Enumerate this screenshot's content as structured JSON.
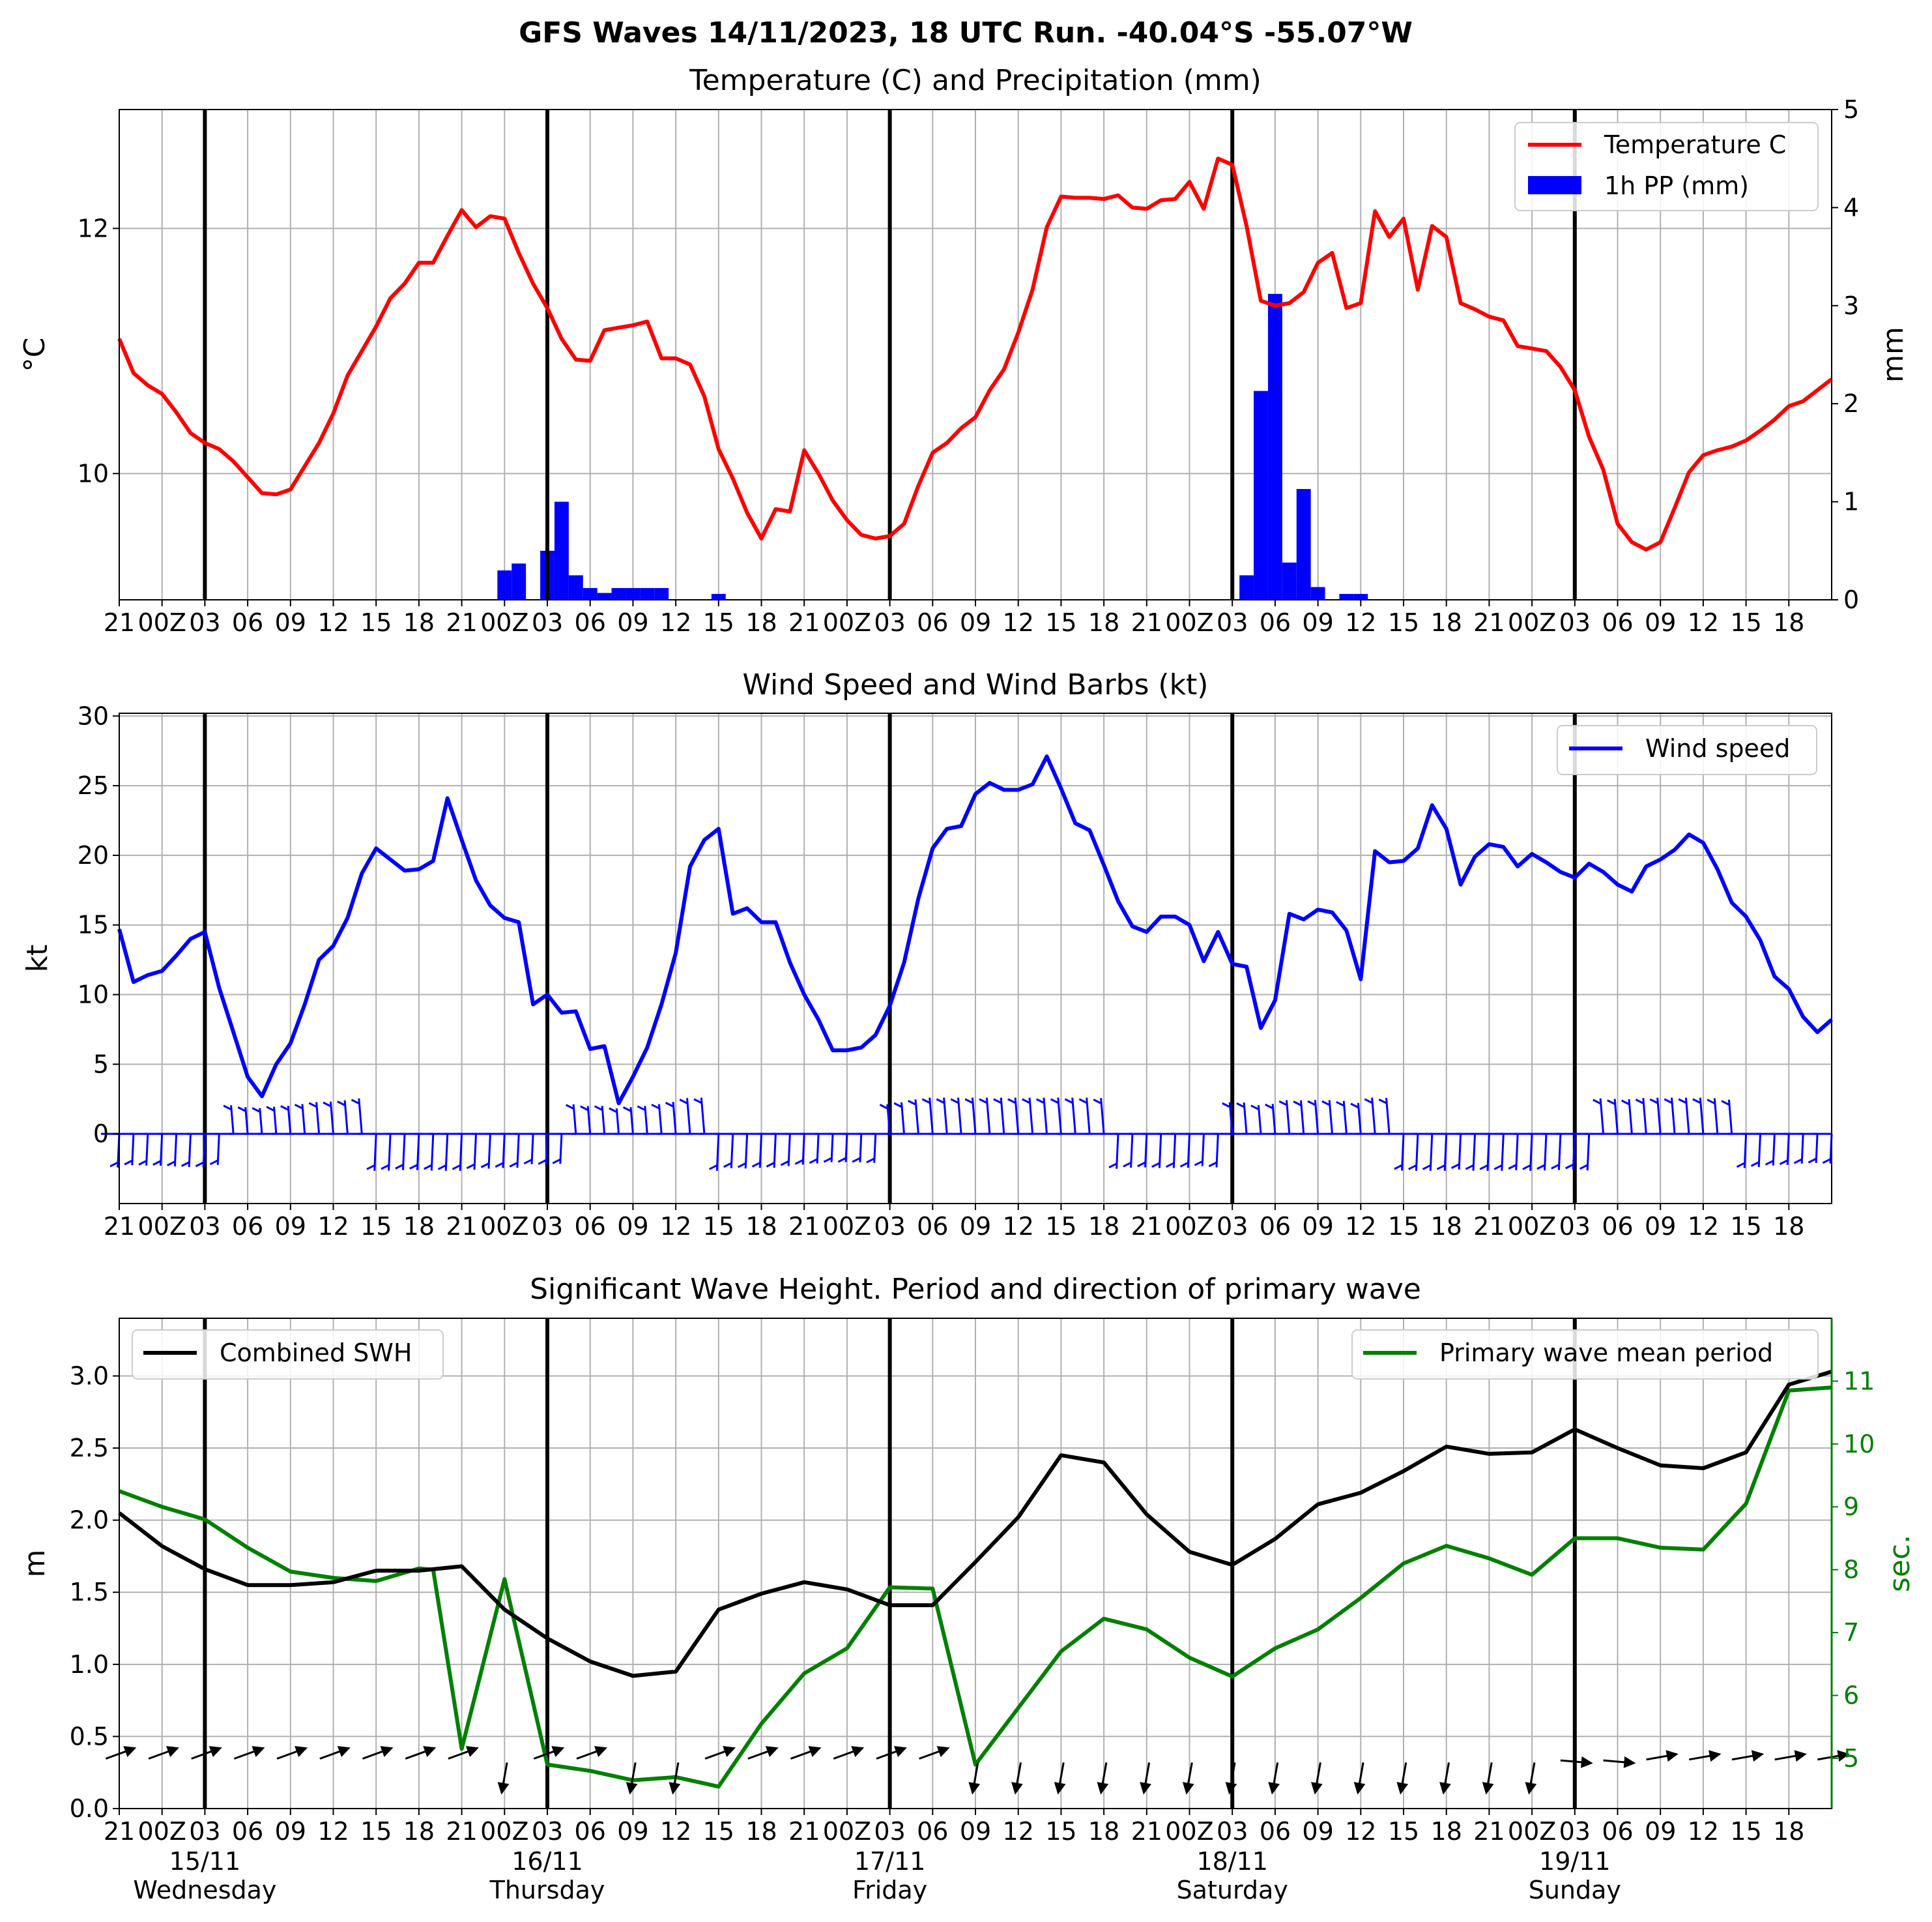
{
  "title": "GFS Waves 14/11/2023, 18 UTC Run. -40.04°S -55.07°W",
  "x_tick_labels": [
    "21",
    "00Z",
    "03",
    "06",
    "09",
    "12",
    "15",
    "18",
    "21",
    "00Z",
    "03",
    "06",
    "09",
    "12",
    "15",
    "18",
    "21",
    "00Z",
    "03",
    "06",
    "09",
    "12",
    "15",
    "18",
    "21",
    "00Z",
    "03",
    "06",
    "09",
    "12",
    "15",
    "18",
    "21",
    "00Z",
    "03",
    "06",
    "09",
    "12",
    "15",
    "18"
  ],
  "day_labels": [
    {
      "date": "15/11",
      "weekday": "Wednesday"
    },
    {
      "date": "16/11",
      "weekday": "Thursday"
    },
    {
      "date": "17/11",
      "weekday": "Friday"
    },
    {
      "date": "18/11",
      "weekday": "Saturday"
    },
    {
      "date": "19/11",
      "weekday": "Sunday"
    }
  ],
  "colors": {
    "temperature": "#ff0000",
    "precipitation": "#0000ff",
    "wind": "#0000ff",
    "swh": "#000000",
    "period": "#008000",
    "grid": "#b0b0b0"
  },
  "chart_data": [
    {
      "type": "line",
      "title": "Temperature (C) and Precipitation (mm)",
      "x_unit": "hours since 14/11/2023 18 UTC",
      "xlim": [
        0,
        120
      ],
      "ylabel": "°C",
      "ylim": [
        8.97,
        12.97
      ],
      "yticks": [
        10,
        12
      ],
      "ylabel_right": "mm",
      "ylim_right": [
        0,
        5
      ],
      "yticks_right": [
        0,
        1,
        2,
        3,
        4,
        5
      ],
      "legend": {
        "location": "upper right",
        "entries": [
          "Temperature C",
          "1h PP (mm)"
        ]
      },
      "series": [
        {
          "name": "Temperature C",
          "x": [
            0,
            1,
            2,
            3,
            4,
            5,
            6,
            7,
            8,
            9,
            10,
            11,
            12,
            13,
            14,
            15,
            16,
            17,
            18,
            19,
            20,
            21,
            22,
            23,
            24,
            25,
            26,
            27,
            28,
            29,
            30,
            31,
            32,
            33,
            34,
            35,
            36,
            37,
            38,
            39,
            40,
            41,
            42,
            43,
            44,
            45,
            46,
            47,
            48,
            49,
            50,
            51,
            52,
            53,
            54,
            55,
            56,
            57,
            58,
            59,
            60,
            61,
            62,
            63,
            64,
            65,
            66,
            67,
            68,
            69,
            70,
            71,
            72,
            73,
            74,
            75,
            76,
            77,
            78,
            79,
            80,
            81,
            82,
            83,
            84,
            85,
            86,
            87,
            88,
            89,
            90,
            91,
            92,
            93,
            94,
            95,
            96,
            97,
            98,
            99,
            100,
            101,
            102,
            103,
            104,
            105,
            106,
            107,
            108,
            109,
            110,
            111,
            112,
            113,
            114,
            115,
            116,
            117,
            118,
            119,
            120
          ],
          "values": [
            11.1,
            10.82,
            10.72,
            10.65,
            10.5,
            10.33,
            10.25,
            10.2,
            10.1,
            9.97,
            9.84,
            9.83,
            9.87,
            10.06,
            10.25,
            10.49,
            10.8,
            11.0,
            11.2,
            11.43,
            11.55,
            11.72,
            11.72,
            11.94,
            12.15,
            12.01,
            12.1,
            12.08,
            11.8,
            11.55,
            11.35,
            11.1,
            10.93,
            10.92,
            11.17,
            11.19,
            11.21,
            11.24,
            10.94,
            10.94,
            10.89,
            10.63,
            10.2,
            9.96,
            9.68,
            9.47,
            9.71,
            9.69,
            10.19,
            10.0,
            9.78,
            9.62,
            9.5,
            9.47,
            9.49,
            9.59,
            9.9,
            10.17,
            10.25,
            10.37,
            10.46,
            10.68,
            10.85,
            11.15,
            11.5,
            12.01,
            12.26,
            12.25,
            12.25,
            12.24,
            12.27,
            12.17,
            12.16,
            12.23,
            12.24,
            12.38,
            12.16,
            12.57,
            12.52,
            12.02,
            11.41,
            11.37,
            11.39,
            11.48,
            11.72,
            11.8,
            11.35,
            11.39,
            12.14,
            11.93,
            12.08,
            11.5,
            12.02,
            11.93,
            11.39,
            11.34,
            11.28,
            11.25,
            11.04,
            11.02,
            11.0,
            10.87,
            10.68,
            10.3,
            10.03,
            9.59,
            9.44,
            9.38,
            9.44,
            9.72,
            10.01,
            10.15,
            10.19,
            10.22,
            10.27,
            10.35,
            10.44,
            10.55,
            10.59,
            10.68,
            10.77
          ]
        },
        {
          "name": "1h PP (mm)",
          "axis": "right",
          "x": [
            27,
            28,
            30,
            31,
            32,
            33,
            34,
            35,
            36,
            37,
            38,
            42,
            79,
            80,
            81,
            82,
            83,
            84,
            85,
            86,
            87
          ],
          "values": [
            0.3,
            0.37,
            0.5,
            1.0,
            0.25,
            0.12,
            0.07,
            0.12,
            0.12,
            0.12,
            0.12,
            0.06,
            0.25,
            2.13,
            3.12,
            0.38,
            1.13,
            0.13,
            0.0,
            0.06,
            0.06
          ]
        }
      ]
    },
    {
      "type": "line",
      "title": "Wind Speed and Wind Barbs (kt)",
      "xlim": [
        0,
        120
      ],
      "ylabel": "kt",
      "ylim": [
        -5,
        30.2
      ],
      "yticks": [
        0,
        5,
        10,
        15,
        20,
        25,
        30
      ],
      "legend": {
        "location": "upper right",
        "entries": [
          "Wind speed"
        ]
      },
      "series": [
        {
          "name": "Wind speed",
          "x": [
            0,
            1,
            2,
            3,
            4,
            5,
            6,
            7,
            8,
            9,
            10,
            11,
            12,
            13,
            14,
            15,
            16,
            17,
            18,
            19,
            20,
            21,
            22,
            23,
            24,
            25,
            26,
            27,
            28,
            29,
            30,
            31,
            32,
            33,
            34,
            35,
            36,
            37,
            38,
            39,
            40,
            41,
            42,
            43,
            44,
            45,
            46,
            47,
            48,
            49,
            50,
            51,
            52,
            53,
            54,
            55,
            56,
            57,
            58,
            59,
            60,
            61,
            62,
            63,
            64,
            65,
            66,
            67,
            68,
            69,
            70,
            71,
            72,
            73,
            74,
            75,
            76,
            77,
            78,
            79,
            80,
            81,
            82,
            83,
            84,
            85,
            86,
            87,
            88,
            89,
            90,
            91,
            92,
            93,
            94,
            95,
            96,
            97,
            98,
            99,
            100,
            101,
            102,
            103,
            104,
            105,
            106,
            107,
            108,
            109,
            110,
            111,
            112,
            113,
            114,
            115,
            116,
            117,
            118,
            119,
            120
          ],
          "values": [
            14.7,
            10.9,
            11.4,
            11.7,
            12.8,
            14.0,
            14.5,
            10.5,
            7.3,
            4.1,
            2.7,
            5.0,
            6.5,
            9.3,
            12.5,
            13.5,
            15.5,
            18.7,
            20.5,
            19.7,
            18.9,
            19.0,
            19.6,
            24.1,
            21.1,
            18.2,
            16.4,
            15.5,
            15.2,
            9.3,
            10.0,
            8.7,
            8.8,
            6.1,
            6.3,
            2.2,
            4.1,
            6.2,
            9.3,
            13.0,
            19.2,
            21.1,
            21.9,
            15.8,
            16.2,
            15.2,
            15.2,
            12.3,
            10.0,
            8.2,
            6.0,
            6.0,
            6.2,
            7.1,
            9.2,
            12.3,
            16.9,
            20.5,
            21.9,
            22.1,
            24.4,
            25.2,
            24.7,
            24.7,
            25.1,
            27.1,
            24.8,
            22.3,
            21.8,
            19.3,
            16.7,
            14.9,
            14.5,
            15.6,
            15.6,
            15.0,
            12.4,
            14.5,
            12.2,
            12.0,
            7.6,
            9.6,
            15.8,
            15.4,
            16.1,
            15.9,
            14.6,
            11.1,
            20.3,
            19.5,
            19.6,
            20.5,
            23.6,
            21.9,
            17.9,
            19.9,
            20.8,
            20.6,
            19.2,
            20.1,
            19.5,
            18.8,
            18.4,
            19.4,
            18.8,
            17.9,
            17.4,
            19.2,
            19.7,
            20.4,
            21.5,
            20.9,
            19.0,
            16.6,
            15.6,
            13.9,
            11.3,
            10.4,
            8.4,
            7.3,
            8.2
          ]
        }
      ]
    },
    {
      "type": "line",
      "title": "Significant Wave Height. Period and direction of primary wave",
      "xlim": [
        0,
        120
      ],
      "ylabel": "m",
      "ylim": [
        0,
        3.4
      ],
      "yticks": [
        0.0,
        0.5,
        1.0,
        1.5,
        2.0,
        2.5,
        3.0
      ],
      "ylabel_right": "sec.",
      "ylim_right": [
        4.2,
        12
      ],
      "yticks_right": [
        5,
        6,
        7,
        8,
        9,
        10,
        11
      ],
      "legend": [
        {
          "location": "upper left",
          "entries": [
            "Combined SWH"
          ]
        },
        {
          "location": "upper right",
          "entries": [
            "Primary wave mean period"
          ]
        }
      ],
      "series": [
        {
          "name": "Combined SWH",
          "x": [
            0,
            3,
            6,
            9,
            12,
            15,
            18,
            21,
            24,
            27,
            30,
            33,
            36,
            39,
            42,
            45,
            48,
            51,
            54,
            57,
            60,
            63,
            66,
            69,
            72,
            75,
            78,
            81,
            84,
            87,
            90,
            93,
            96,
            99,
            102,
            105,
            108,
            111,
            114,
            117,
            120
          ],
          "values": [
            2.05,
            1.82,
            1.66,
            1.55,
            1.55,
            1.57,
            1.65,
            1.65,
            1.68,
            1.38,
            1.18,
            1.02,
            0.92,
            0.95,
            1.38,
            1.49,
            1.57,
            1.52,
            1.41,
            1.41,
            1.71,
            2.02,
            2.45,
            2.4,
            2.04,
            1.78,
            1.69,
            1.87,
            2.11,
            2.19,
            2.34,
            2.51,
            2.46,
            2.47,
            2.63,
            2.5,
            2.38,
            2.36,
            2.47,
            2.94,
            3.03
          ]
        },
        {
          "name": "Primary wave mean period",
          "axis": "right",
          "x": [
            0,
            3,
            6,
            9,
            12,
            15,
            18,
            21,
            22,
            24,
            27,
            30,
            33,
            36,
            39,
            42,
            45,
            48,
            51,
            54,
            57,
            60,
            63,
            66,
            69,
            72,
            75,
            78,
            81,
            84,
            87,
            90,
            93,
            96,
            99,
            102,
            105,
            108,
            111,
            114,
            117,
            120
          ],
          "values": [
            9.25,
            9.0,
            8.8,
            8.35,
            7.97,
            7.87,
            7.82,
            8.02,
            8.0,
            5.15,
            7.85,
            4.9,
            4.8,
            4.65,
            4.7,
            4.55,
            5.55,
            6.35,
            6.75,
            7.72,
            7.7,
            4.9,
            5.8,
            6.7,
            7.22,
            7.05,
            6.6,
            6.3,
            6.75,
            7.05,
            7.55,
            8.1,
            8.38,
            8.18,
            7.92,
            8.5,
            8.5,
            8.35,
            8.32,
            9.05,
            10.85,
            10.9
          ]
        }
      ],
      "arrows_x": [
        0,
        3,
        6,
        9,
        12,
        15,
        18,
        21,
        24,
        27,
        30,
        33,
        36,
        39,
        42,
        45,
        48,
        51,
        54,
        57,
        60,
        63,
        66,
        69,
        72,
        75,
        78,
        81,
        84,
        87,
        90,
        93,
        96,
        99,
        102,
        105,
        108,
        111,
        114,
        117,
        120
      ]
    }
  ]
}
